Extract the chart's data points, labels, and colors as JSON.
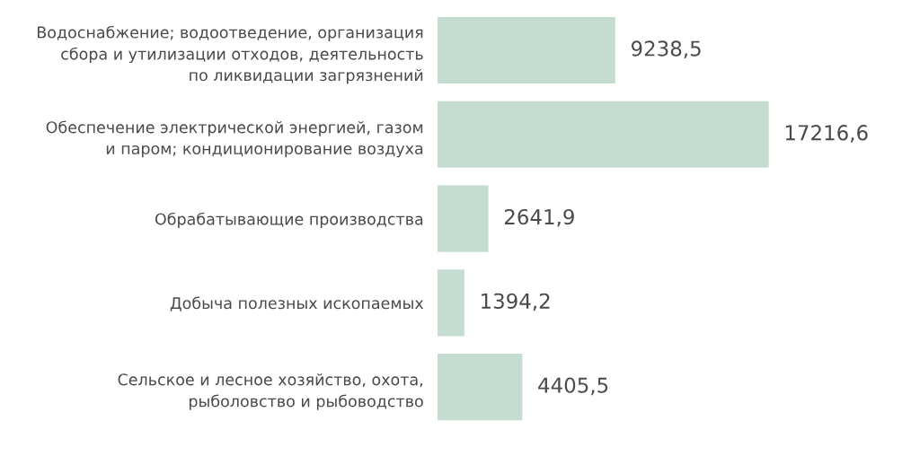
{
  "chart_data": {
    "type": "bar",
    "orientation": "horizontal",
    "categories": [
      "Водоснабжение; водоотведение, организация\nсбора и утилизации отходов, деятельность\nпо ликвидации загрязнений",
      "Обеспечение электрической энергией, газом\nи паром; кондиционирование воздуха",
      "Обрабатывающие производства",
      "Добыча полезных ископаемых",
      "Сельское и лесное хозяйство, охота,\nрыболовство и рыбоводство"
    ],
    "values": [
      9238.5,
      17216.6,
      2641.9,
      1394.2,
      4405.5
    ],
    "value_labels": [
      "9238,5",
      "17216,6",
      "2641,9",
      "1394,2",
      "4405,5"
    ],
    "color": "#c4ddd0",
    "tick_labels": "y"
  }
}
